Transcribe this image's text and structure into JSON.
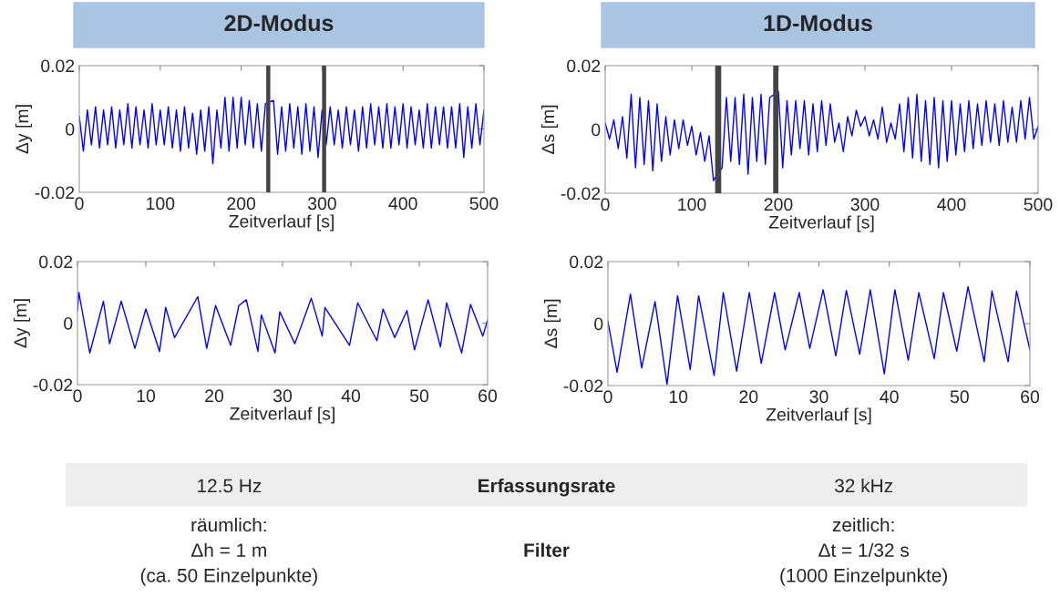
{
  "chart_data": [
    {
      "type": "line",
      "title": "2D-Modus",
      "xlabel": "Zeitverlauf [s]",
      "ylabel": "Δy [m]",
      "xlim": [
        0,
        500
      ],
      "ylim": [
        -0.02,
        0.02
      ],
      "xticks": [
        0,
        100,
        200,
        300,
        400,
        500
      ],
      "yticks": [
        -0.02,
        0,
        0.02
      ],
      "grid": false,
      "legend": false,
      "bands": [
        {
          "axis": "x",
          "from": 231,
          "to": 236,
          "color": "#444444"
        },
        {
          "axis": "x",
          "from": 300,
          "to": 305,
          "color": "#444444"
        }
      ],
      "series": [
        {
          "color": "#0000ff",
          "x": [
            0,
            5,
            10,
            15,
            20,
            25,
            30,
            35,
            40,
            45,
            50,
            55,
            60,
            65,
            70,
            75,
            80,
            85,
            90,
            95,
            100,
            105,
            110,
            115,
            120,
            125,
            130,
            135,
            140,
            145,
            150,
            155,
            160,
            165,
            170,
            175,
            180,
            185,
            190,
            195,
            200,
            205,
            210,
            215,
            220,
            225,
            230,
            235,
            240,
            245,
            250,
            255,
            260,
            265,
            270,
            275,
            280,
            285,
            290,
            295,
            300,
            305,
            310,
            315,
            320,
            325,
            330,
            335,
            340,
            345,
            350,
            355,
            360,
            365,
            370,
            375,
            380,
            385,
            390,
            395,
            400,
            405,
            410,
            415,
            420,
            425,
            430,
            435,
            440,
            445,
            450,
            455,
            460,
            465,
            470,
            475,
            480,
            485,
            490,
            495,
            500
          ],
          "values": [
            0.004,
            -0.007,
            0.006,
            -0.005,
            0.007,
            -0.006,
            0.006,
            -0.005,
            0.007,
            -0.006,
            0.006,
            -0.005,
            0.008,
            -0.006,
            0.007,
            -0.005,
            0.006,
            -0.006,
            0.008,
            -0.005,
            0.006,
            -0.005,
            0.007,
            -0.006,
            0.006,
            -0.007,
            0.007,
            -0.006,
            0.005,
            -0.008,
            0.006,
            -0.007,
            0.007,
            -0.011,
            0.006,
            -0.006,
            0.01,
            -0.007,
            0.01,
            -0.006,
            0.01,
            -0.005,
            0.009,
            -0.006,
            0.008,
            -0.007,
            0.008,
            null,
            0.009,
            -0.008,
            0.007,
            -0.007,
            0.008,
            -0.006,
            0.007,
            -0.008,
            0.008,
            -0.007,
            0.007,
            -0.009,
            0.006,
            -0.005,
            0.007,
            -0.005,
            0.006,
            -0.006,
            0.007,
            -0.005,
            0.006,
            -0.007,
            0.007,
            -0.006,
            0.008,
            -0.005,
            0.007,
            -0.006,
            0.008,
            -0.006,
            0.007,
            -0.005,
            0.008,
            -0.006,
            0.007,
            -0.005,
            0.006,
            -0.006,
            0.008,
            -0.006,
            0.007,
            -0.005,
            0.007,
            -0.006,
            0.007,
            -0.006,
            0.008,
            -0.009,
            0.007,
            -0.006,
            0.008,
            -0.005,
            0.006
          ]
        }
      ]
    },
    {
      "type": "line",
      "title": "1D-Modus",
      "xlabel": "Zeitverlauf [s]",
      "ylabel": "Δs [m]",
      "xlim": [
        0,
        500
      ],
      "ylim": [
        -0.02,
        0.02
      ],
      "xticks": [
        0,
        100,
        200,
        300,
        400,
        500
      ],
      "yticks": [
        -0.02,
        0,
        0.02
      ],
      "grid": false,
      "legend": false,
      "bands": [
        {
          "axis": "x",
          "from": 127,
          "to": 134,
          "color": "#444444"
        },
        {
          "axis": "x",
          "from": 194,
          "to": 200,
          "color": "#444444"
        }
      ],
      "series": [
        {
          "color": "#0000ff",
          "x": [
            0,
            5,
            10,
            15,
            20,
            25,
            30,
            35,
            40,
            45,
            50,
            55,
            60,
            65,
            70,
            75,
            80,
            85,
            90,
            95,
            100,
            105,
            110,
            115,
            120,
            125,
            130,
            135,
            140,
            145,
            150,
            155,
            160,
            165,
            170,
            175,
            180,
            185,
            190,
            195,
            200,
            205,
            210,
            215,
            220,
            225,
            230,
            235,
            240,
            245,
            250,
            255,
            260,
            265,
            270,
            275,
            280,
            285,
            290,
            295,
            300,
            305,
            310,
            315,
            320,
            325,
            330,
            335,
            340,
            345,
            350,
            355,
            360,
            365,
            370,
            375,
            380,
            385,
            390,
            395,
            400,
            405,
            410,
            415,
            420,
            425,
            430,
            435,
            440,
            445,
            450,
            455,
            460,
            465,
            470,
            475,
            480,
            485,
            490,
            495,
            500
          ],
          "values": [
            0.002,
            -0.003,
            0.003,
            -0.006,
            0.004,
            -0.009,
            0.011,
            -0.012,
            0.01,
            -0.011,
            0.009,
            -0.013,
            0.008,
            -0.01,
            0.004,
            -0.008,
            0.003,
            -0.006,
            0.003,
            -0.005,
            0.001,
            -0.008,
            -0.001,
            -0.01,
            -0.002,
            -0.016,
            null,
            -0.012,
            0.01,
            -0.01,
            0.01,
            -0.011,
            0.011,
            -0.014,
            0.01,
            -0.01,
            0.011,
            -0.011,
            0.01,
            null,
            0.012,
            -0.012,
            0.009,
            -0.008,
            0.009,
            -0.006,
            0.009,
            -0.008,
            0.008,
            -0.007,
            0.009,
            -0.005,
            0.008,
            -0.004,
            0.002,
            -0.007,
            0.004,
            -0.002,
            0.006,
            0.001,
            0.004,
            -0.002,
            0.003,
            -0.003,
            0.007,
            -0.004,
            0.002,
            -0.003,
            0.008,
            -0.007,
            0.01,
            -0.009,
            0.011,
            -0.01,
            0.009,
            -0.011,
            0.01,
            -0.012,
            0.009,
            -0.01,
            0.009,
            -0.008,
            0.008,
            -0.007,
            0.009,
            -0.006,
            0.008,
            -0.005,
            0.009,
            -0.004,
            0.008,
            -0.005,
            0.009,
            -0.004,
            0.007,
            -0.004,
            0.009,
            -0.003,
            0.01,
            -0.003,
            0.001
          ]
        }
      ]
    },
    {
      "type": "line",
      "xlabel": "Zeitverlauf [s]",
      "ylabel": "Δy [m]",
      "xlim": [
        0,
        60
      ],
      "ylim": [
        -0.02,
        0.02
      ],
      "xticks": [
        0,
        10,
        20,
        30,
        40,
        50,
        60
      ],
      "yticks": [
        -0.02,
        0,
        0.02
      ],
      "grid": false,
      "legend": false,
      "series": [
        {
          "color": "#0000ff",
          "x": [
            0,
            0.2,
            1.8,
            3.8,
            4.7,
            6.4,
            8.4,
            10,
            12,
            12.9,
            14.2,
            17.6,
            18.9,
            20.2,
            22.4,
            23.6,
            24.7,
            26.4,
            26.9,
            28.9,
            29.6,
            31.8,
            34.2,
            35.8,
            36.2,
            39.8,
            41,
            43.8,
            44.7,
            46.4,
            48.2,
            49.3,
            51.3,
            53.1,
            54,
            56.2,
            57.5,
            59.3,
            60
          ],
          "values": [
            0.004,
            0.01,
            -0.0097,
            0.0071,
            -0.0067,
            0.0071,
            -0.0082,
            0.0046,
            -0.0092,
            0.0051,
            -0.0047,
            0.0086,
            -0.0082,
            0.0057,
            -0.0072,
            0.0057,
            0.0076,
            -0.0092,
            0.0027,
            -0.0097,
            0.0037,
            -0.0067,
            0.0081,
            -0.0042,
            0.0051,
            -0.0072,
            0.0066,
            -0.0057,
            0.0046,
            -0.0047,
            0.0041,
            -0.0087,
            0.0076,
            -0.0077,
            0.0066,
            -0.0097,
            0.0061,
            -0.0042,
            0.001
          ]
        }
      ]
    },
    {
      "type": "line",
      "xlabel": "Zeitverlauf [s]",
      "ylabel": "Δs [m]",
      "xlim": [
        0,
        60
      ],
      "ylim": [
        -0.02,
        0.02
      ],
      "xticks": [
        0,
        10,
        20,
        30,
        40,
        50,
        60
      ],
      "yticks": [
        -0.02,
        0,
        0.02
      ],
      "grid": false,
      "legend": false,
      "series": [
        {
          "color": "#0000ff",
          "x": [
            0,
            1.3,
            3.2,
            4.8,
            6.7,
            8.4,
            9.9,
            11.7,
            12.9,
            15.1,
            16.4,
            18.3,
            20.1,
            21.8,
            23.7,
            25.2,
            27.2,
            28.7,
            30.6,
            32.4,
            33.9,
            35.8,
            37.3,
            39.3,
            40.8,
            42.7,
            44.2,
            46.4,
            47.7,
            49.6,
            51.2,
            53.5,
            54.6,
            56.9,
            58.1,
            60
          ],
          "values": [
            0.0008,
            -0.0157,
            0.0095,
            -0.0143,
            0.0071,
            -0.0196,
            0.009,
            -0.0148,
            0.009,
            -0.0167,
            0.01,
            -0.0153,
            0.01,
            -0.0128,
            0.01,
            -0.0085,
            0.01,
            -0.008,
            0.0109,
            -0.0104,
            0.0107,
            -0.0099,
            0.0109,
            -0.0162,
            0.0109,
            -0.0118,
            0.01,
            -0.0113,
            0.01,
            -0.0089,
            0.0119,
            -0.0123,
            0.0105,
            -0.0123,
            0.0105,
            -0.0085
          ]
        }
      ]
    },
    {
      "type": "other",
      "annotations": [
        "12.5 Hz",
        "Erfassungsrate",
        "32 kHz",
        "räumlich:\nΔh = 1 m\n(ca. 50 Einzelpunkte)",
        "Filter",
        "zeitlich:\nΔt = 1/32 s\n(1000 Einzelpunkte)"
      ]
    }
  ]
}
